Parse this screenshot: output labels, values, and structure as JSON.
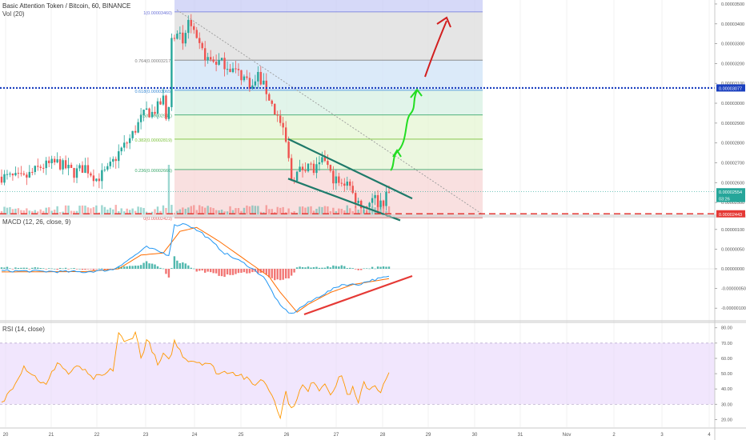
{
  "header": {
    "title": "Basic Attention Token / Bitcoin, 60, BINANCE",
    "vol": "Vol (20)",
    "macd": "MACD (12, 26, close, 9)",
    "rsi": "RSI (14, close)"
  },
  "colors": {
    "up": "#26a69a",
    "down": "#ef5350",
    "macd_line": "#2196f3",
    "signal_line": "#ff6d00",
    "rsi_line": "#ff9800",
    "rsi_band": "#e7d6fb",
    "resistance": "#1a3fbf",
    "support": "#e53935",
    "wedge": "#1f7a6a",
    "path_green": "#22dd22",
    "path_red": "#d21f1f"
  },
  "chart_data": [
    {
      "type": "candlestick",
      "panel": "price",
      "x_ticks": [
        "20",
        "21",
        "22",
        "23",
        "24",
        "25",
        "26",
        "27",
        "28",
        "29",
        "30",
        "31",
        "Nov",
        "2",
        "3",
        "4"
      ],
      "y_ticks": [
        "0.00003500",
        "0.00003400",
        "0.00003300",
        "0.00003200",
        "0.00003100",
        "0.00003000",
        "0.00002900",
        "0.00002800",
        "0.00002700",
        "0.00002600",
        "0.00002500"
      ],
      "ylim": [
        2.44e-05,
        3.52e-05
      ],
      "price_badges": [
        {
          "label": "0.00003077",
          "value": 3.077e-05,
          "color": "#1a3fbf"
        },
        {
          "label": "0.00002554",
          "value": 2.554e-05,
          "color": "#26a69a"
        },
        {
          "label": "03:26",
          "value": 2.52e-05,
          "color": "#26a69a"
        },
        {
          "label": "0.00002443",
          "value": 2.443e-05,
          "color": "#e53935"
        }
      ],
      "fib_levels": [
        {
          "label": "1(0.00003460)",
          "value": 3.46e-05
        },
        {
          "label": "0.764(0.00003217)",
          "value": 3.217e-05
        },
        {
          "label": "0.618(0.00003065)",
          "value": 3.065e-05
        },
        {
          "label": "0.5(0.00002941)",
          "value": 2.941e-05
        },
        {
          "label": "0.382(0.00002819)",
          "value": 2.819e-05
        },
        {
          "label": "0.236(0.00002666)",
          "value": 2.666e-05
        },
        {
          "label": "0(0.00002423)",
          "value": 2.423e-05
        }
      ],
      "waypoints": [
        [
          0,
          2.63e-05
        ],
        [
          8,
          2.62e-05
        ],
        [
          14,
          2.68e-05
        ],
        [
          20,
          2.7e-05
        ],
        [
          26,
          2.65e-05
        ],
        [
          30,
          2.68e-05
        ],
        [
          34,
          2.62e-05
        ],
        [
          38,
          2.66e-05
        ],
        [
          42,
          2.75e-05
        ],
        [
          46,
          2.82e-05
        ],
        [
          50,
          2.92e-05
        ],
        [
          52,
          2.96e-05
        ],
        [
          54,
          2.95e-05
        ],
        [
          56,
          2.98e-05
        ],
        [
          58,
          3.02e-05
        ],
        [
          59,
          2.92e-05
        ],
        [
          60,
          3e-05
        ],
        [
          61,
          3.32e-05
        ],
        [
          63,
          3.38e-05
        ],
        [
          65,
          3.28e-05
        ],
        [
          67,
          3.42e-05
        ],
        [
          70,
          3.3e-05
        ],
        [
          74,
          3.22e-05
        ],
        [
          80,
          3.2e-05
        ],
        [
          84,
          3.16e-05
        ],
        [
          88,
          3.12e-05
        ],
        [
          90,
          3.08e-05
        ],
        [
          92,
          3.14e-05
        ],
        [
          95,
          3.06e-05
        ],
        [
          98,
          2.96e-05
        ],
        [
          100,
          2.9e-05
        ],
        [
          102,
          2.8e-05
        ],
        [
          104,
          2.62e-05
        ],
        [
          107,
          2.66e-05
        ],
        [
          110,
          2.7e-05
        ],
        [
          112,
          2.66e-05
        ],
        [
          114,
          2.68e-05
        ],
        [
          116,
          2.72e-05
        ],
        [
          118,
          2.64e-05
        ],
        [
          122,
          2.58e-05
        ],
        [
          124,
          2.62e-05
        ],
        [
          126,
          2.54e-05
        ],
        [
          128,
          2.5e-05
        ],
        [
          131,
          2.48e-05
        ],
        [
          133,
          2.54e-05
        ],
        [
          135,
          2.5e-05
        ],
        [
          137,
          2.51e-05
        ],
        [
          139,
          2.55e-05
        ]
      ]
    },
    {
      "type": "line",
      "panel": "macd",
      "y_ticks": [
        "0.00000100",
        "0.00000050",
        "0.00000000",
        "-0.00000050",
        "-0.00000100"
      ],
      "ylim": [
        -1.3e-06,
        1.3e-06
      ],
      "macd_waypoints": [
        [
          0,
          -5e-08
        ],
        [
          30,
          -8e-08
        ],
        [
          40,
          -2e-08
        ],
        [
          46,
          2.5e-07
        ],
        [
          52,
          5.5e-07
        ],
        [
          56,
          4.5e-07
        ],
        [
          60,
          3.5e-07
        ],
        [
          62,
          1.1e-06
        ],
        [
          66,
          1.15e-06
        ],
        [
          72,
          9e-07
        ],
        [
          80,
          4e-07
        ],
        [
          88,
          1e-07
        ],
        [
          94,
          -2e-07
        ],
        [
          100,
          -9.5e-07
        ],
        [
          104,
          -1.15e-06
        ],
        [
          108,
          -9.5e-07
        ],
        [
          114,
          -7e-07
        ],
        [
          122,
          -4e-07
        ],
        [
          128,
          -4e-07
        ],
        [
          132,
          -3e-07
        ],
        [
          139,
          -2e-07
        ]
      ],
      "signal_waypoints": [
        [
          0,
          -8e-08
        ],
        [
          30,
          -7e-08
        ],
        [
          42,
          0.0
        ],
        [
          50,
          3.5e-07
        ],
        [
          58,
          4e-07
        ],
        [
          64,
          9.5e-07
        ],
        [
          70,
          1.05e-06
        ],
        [
          78,
          7e-07
        ],
        [
          88,
          2e-07
        ],
        [
          96,
          -2e-07
        ],
        [
          100,
          -6e-07
        ],
        [
          106,
          -1.1e-06
        ],
        [
          110,
          -9e-07
        ],
        [
          118,
          -6e-07
        ],
        [
          126,
          -4e-07
        ],
        [
          139,
          -2.5e-07
        ]
      ]
    },
    {
      "type": "line",
      "panel": "rsi",
      "y_ticks": [
        "80.00",
        "70.00",
        "60.00",
        "50.00",
        "40.00",
        "30.00",
        "20.00"
      ],
      "ylim": [
        15,
        83
      ],
      "band": [
        30,
        70
      ],
      "waypoints": [
        [
          0,
          30
        ],
        [
          4,
          42
        ],
        [
          8,
          55
        ],
        [
          12,
          48
        ],
        [
          16,
          42
        ],
        [
          20,
          58
        ],
        [
          24,
          50
        ],
        [
          28,
          55
        ],
        [
          32,
          47
        ],
        [
          36,
          48
        ],
        [
          40,
          53
        ],
        [
          42,
          77
        ],
        [
          44,
          70
        ],
        [
          46,
          72
        ],
        [
          48,
          78
        ],
        [
          50,
          60
        ],
        [
          52,
          72
        ],
        [
          54,
          66
        ],
        [
          56,
          55
        ],
        [
          58,
          62
        ],
        [
          60,
          58
        ],
        [
          62,
          71
        ],
        [
          64,
          65
        ],
        [
          66,
          60
        ],
        [
          70,
          58
        ],
        [
          74,
          57
        ],
        [
          78,
          50
        ],
        [
          82,
          52
        ],
        [
          86,
          49
        ],
        [
          90,
          43
        ],
        [
          94,
          46
        ],
        [
          98,
          33
        ],
        [
          100,
          22
        ],
        [
          102,
          38
        ],
        [
          104,
          26
        ],
        [
          106,
          35
        ],
        [
          108,
          42
        ],
        [
          110,
          38
        ],
        [
          112,
          46
        ],
        [
          114,
          40
        ],
        [
          116,
          44
        ],
        [
          118,
          38
        ],
        [
          120,
          42
        ],
        [
          122,
          50
        ],
        [
          124,
          36
        ],
        [
          126,
          40
        ],
        [
          128,
          30
        ],
        [
          130,
          44
        ],
        [
          132,
          40
        ],
        [
          134,
          43
        ],
        [
          136,
          38
        ],
        [
          139,
          50
        ]
      ]
    }
  ]
}
